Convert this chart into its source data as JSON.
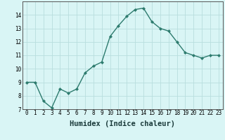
{
  "xlabel": "Humidex (Indice chaleur)",
  "x": [
    0,
    1,
    2,
    3,
    4,
    5,
    6,
    7,
    8,
    9,
    10,
    11,
    12,
    13,
    14,
    15,
    16,
    17,
    18,
    19,
    20,
    21,
    22,
    23
  ],
  "y": [
    9.0,
    9.0,
    7.6,
    7.1,
    8.5,
    8.2,
    8.5,
    9.7,
    10.2,
    10.5,
    12.4,
    13.2,
    13.9,
    14.4,
    14.5,
    13.5,
    13.0,
    12.8,
    12.0,
    11.2,
    11.0,
    10.8,
    11.0,
    11.0
  ],
  "line_color": "#2d7b6e",
  "marker": "D",
  "markersize": 2.0,
  "linewidth": 1.0,
  "background_color": "#d9f5f5",
  "grid_color": "#b8dede",
  "ylim": [
    7,
    15
  ],
  "xlim": [
    -0.5,
    23.5
  ],
  "yticks": [
    7,
    8,
    9,
    10,
    11,
    12,
    13,
    14
  ],
  "xticks": [
    0,
    1,
    2,
    3,
    4,
    5,
    6,
    7,
    8,
    9,
    10,
    11,
    12,
    13,
    14,
    15,
    16,
    17,
    18,
    19,
    20,
    21,
    22,
    23
  ],
  "tick_fontsize": 5.5,
  "xlabel_fontsize": 7.5,
  "spine_color": "#555555"
}
